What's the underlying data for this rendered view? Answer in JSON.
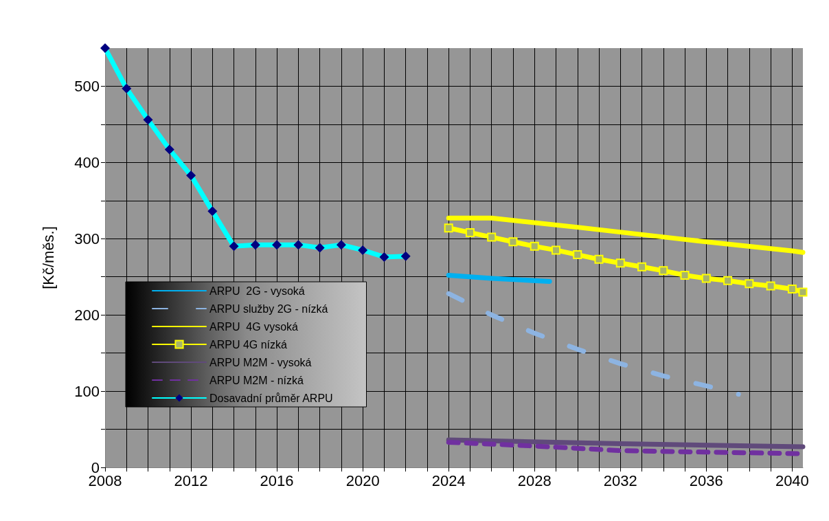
{
  "chart_data": {
    "type": "line",
    "ylabel": "[Kč/měs.]",
    "xlim": [
      2008,
      2040.5
    ],
    "xticks": [
      2008,
      {
        "value": 2009,
        "label": null
      },
      {
        "value": 2010,
        "label": null
      },
      {
        "value": 2011,
        "label": null
      },
      2012,
      {
        "value": 2013,
        "label": null
      },
      {
        "value": 2014,
        "label": null
      },
      {
        "value": 2015,
        "label": null
      },
      2016,
      {
        "value": 2017,
        "label": null
      },
      {
        "value": 2018,
        "label": null
      },
      {
        "value": 2019,
        "label": null
      },
      2020,
      {
        "value": 2021,
        "label": null
      },
      {
        "value": 2022,
        "label": null
      },
      {
        "value": 2023,
        "label": null
      },
      2024,
      {
        "value": 2025,
        "label": null
      },
      {
        "value": 2026,
        "label": null
      },
      {
        "value": 2027,
        "label": null
      },
      2028,
      {
        "value": 2029,
        "label": null
      },
      {
        "value": 2030,
        "label": null
      },
      {
        "value": 2031,
        "label": null
      },
      2032,
      {
        "value": 2033,
        "label": null
      },
      {
        "value": 2034,
        "label": null
      },
      {
        "value": 2035,
        "label": null
      },
      2036,
      {
        "value": 2037,
        "label": null
      },
      {
        "value": 2038,
        "label": null
      },
      {
        "value": 2039,
        "label": null
      },
      2040
    ],
    "ylim": [
      0,
      550
    ],
    "yticks": [
      0,
      {
        "value": 50,
        "label": null
      },
      100,
      {
        "value": 150,
        "label": null
      },
      200,
      {
        "value": 250,
        "label": null
      },
      300,
      {
        "value": 350,
        "label": null
      },
      400,
      {
        "value": 450,
        "label": null
      },
      500
    ],
    "grid": true,
    "legend": "bottom left",
    "series": [
      {
        "name": "ARPU  2G - vysoká",
        "color": "#00b0f0",
        "line_style": "solid",
        "marker": "none",
        "x": [
          2024,
          2026,
          2028.7
        ],
        "values": [
          252,
          248,
          244
        ]
      },
      {
        "name": "ARPU služby 2G - nízká",
        "color": "#8db4e2",
        "line_style": "dashed",
        "marker": "none",
        "x": [
          2024,
          2026,
          2028,
          2030,
          2032,
          2034,
          2036,
          2037.5
        ],
        "values": [
          228,
          200,
          176,
          155,
          136,
          120,
          107,
          96
        ]
      },
      {
        "name": "ARPU  4G vysoká",
        "color": "#ffff00",
        "line_style": "solid",
        "marker": "none",
        "x": [
          2024,
          2026,
          2030,
          2035,
          2040,
          2040.5
        ],
        "values": [
          327,
          327,
          315,
          299,
          284,
          282
        ]
      },
      {
        "name": "ARPU 4G nízká",
        "color": "#ffff00",
        "line_style": "solid",
        "marker": "square",
        "x": [
          2024,
          2025,
          2026,
          2027,
          2028,
          2029,
          2030,
          2031,
          2032,
          2033,
          2034,
          2035,
          2036,
          2037,
          2038,
          2039,
          2040,
          2040.5
        ],
        "values": [
          314,
          308,
          302,
          296,
          290,
          285,
          279,
          273,
          268,
          263,
          258,
          252,
          248,
          245,
          241,
          238,
          234,
          230
        ]
      },
      {
        "name": "ARPU M2M - vysoká",
        "color": "#604a7b",
        "line_style": "solid",
        "marker": "none",
        "x": [
          2024,
          2032,
          2040.5
        ],
        "values": [
          36,
          31,
          27
        ]
      },
      {
        "name": "ARPU M2M - nízká",
        "color": "#7030a0",
        "line_style": "dashed",
        "marker": "none",
        "x": [
          2024,
          2028,
          2032,
          2036,
          2040.5
        ],
        "values": [
          33,
          28,
          22,
          20,
          18
        ]
      },
      {
        "name": "Dosavadní průměr ARPU",
        "color": "#00ffff",
        "line_style": "solid",
        "marker": "diamond",
        "x": [
          2008,
          2009,
          2010,
          2011,
          2012,
          2013,
          2014,
          2015,
          2016,
          2017,
          2018,
          2019,
          2020,
          2021,
          2022
        ],
        "values": [
          550,
          497,
          456,
          417,
          383,
          336,
          290,
          292,
          292,
          292,
          288,
          292,
          285,
          276,
          277
        ]
      }
    ]
  }
}
